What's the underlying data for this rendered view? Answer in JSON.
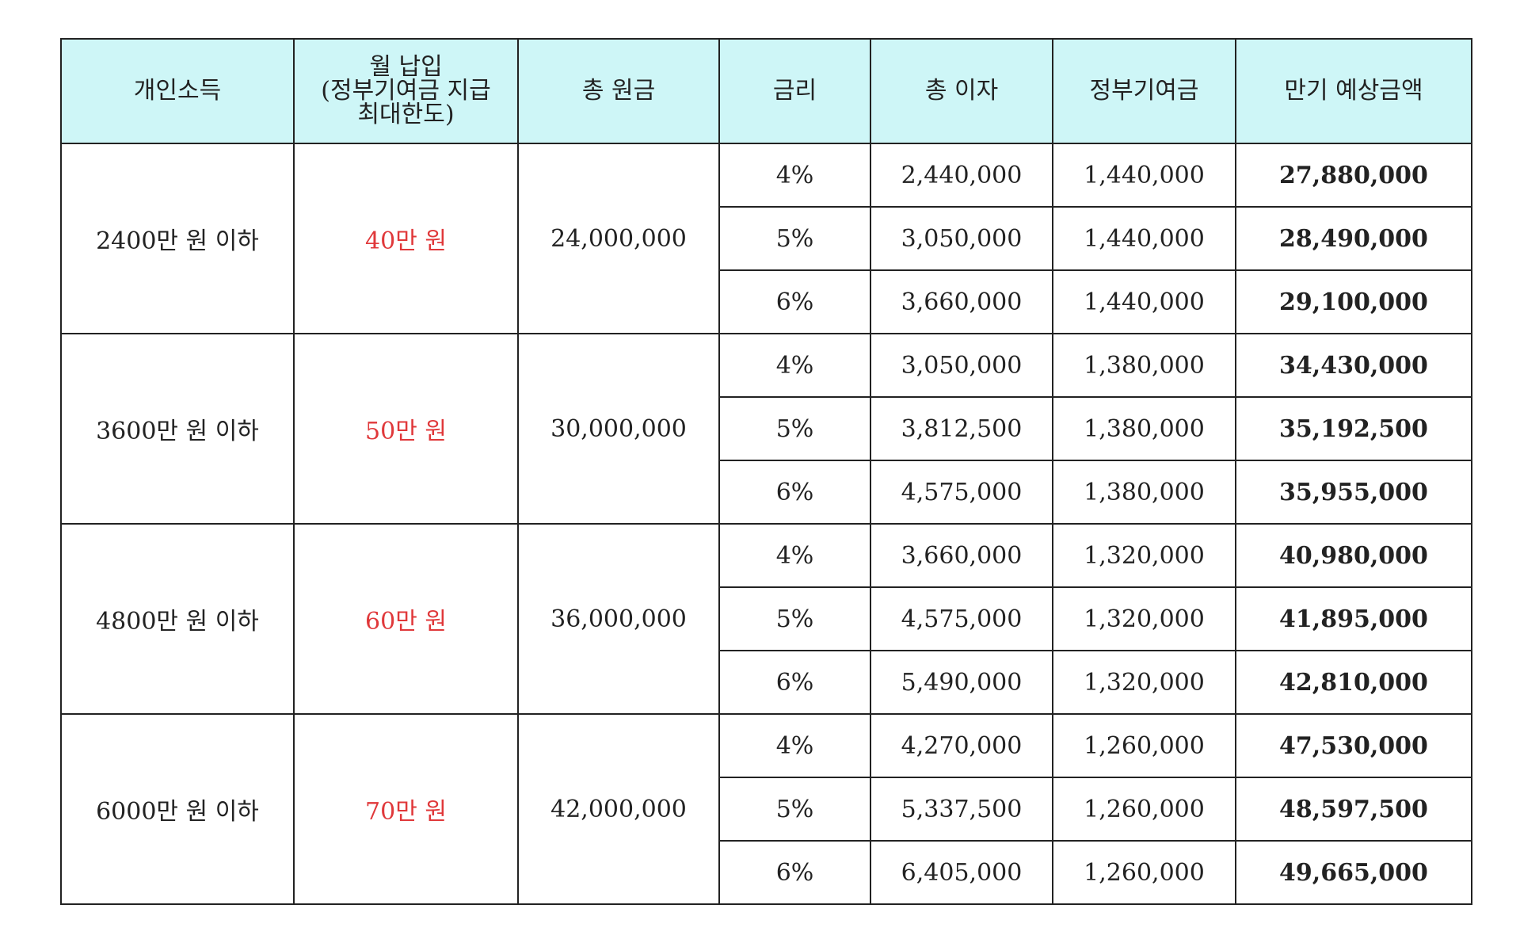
{
  "headers": {
    "income": "개인소득",
    "monthly_line1": "월 납입",
    "monthly_line2": "(정부기여금 지급",
    "monthly_line3": "최대한도)",
    "principal": "총 원금",
    "rate": "금리",
    "interest": "총 이자",
    "gov_contribution": "정부기여금",
    "maturity": "만기 예상금액"
  },
  "colors": {
    "header_bg": "#cef6f7",
    "monthly_text": "#e0383a",
    "border": "#222222"
  },
  "groups": [
    {
      "income": "2400만 원 이하",
      "monthly": "40만 원",
      "principal": "24,000,000",
      "rows": [
        {
          "rate": "4%",
          "interest": "2,440,000",
          "gov": "1,440,000",
          "maturity": "27,880,000"
        },
        {
          "rate": "5%",
          "interest": "3,050,000",
          "gov": "1,440,000",
          "maturity": "28,490,000"
        },
        {
          "rate": "6%",
          "interest": "3,660,000",
          "gov": "1,440,000",
          "maturity": "29,100,000"
        }
      ]
    },
    {
      "income": "3600만 원 이하",
      "monthly": "50만 원",
      "principal": "30,000,000",
      "rows": [
        {
          "rate": "4%",
          "interest": "3,050,000",
          "gov": "1,380,000",
          "maturity": "34,430,000"
        },
        {
          "rate": "5%",
          "interest": "3,812,500",
          "gov": "1,380,000",
          "maturity": "35,192,500"
        },
        {
          "rate": "6%",
          "interest": "4,575,000",
          "gov": "1,380,000",
          "maturity": "35,955,000"
        }
      ]
    },
    {
      "income": "4800만 원 이하",
      "monthly": "60만 원",
      "principal": "36,000,000",
      "rows": [
        {
          "rate": "4%",
          "interest": "3,660,000",
          "gov": "1,320,000",
          "maturity": "40,980,000"
        },
        {
          "rate": "5%",
          "interest": "4,575,000",
          "gov": "1,320,000",
          "maturity": "41,895,000"
        },
        {
          "rate": "6%",
          "interest": "5,490,000",
          "gov": "1,320,000",
          "maturity": "42,810,000"
        }
      ]
    },
    {
      "income": "6000만 원 이하",
      "monthly": "70만 원",
      "principal": "42,000,000",
      "rows": [
        {
          "rate": "4%",
          "interest": "4,270,000",
          "gov": "1,260,000",
          "maturity": "47,530,000"
        },
        {
          "rate": "5%",
          "interest": "5,337,500",
          "gov": "1,260,000",
          "maturity": "48,597,500"
        },
        {
          "rate": "6%",
          "interest": "6,405,000",
          "gov": "1,260,000",
          "maturity": "49,665,000"
        }
      ]
    }
  ]
}
